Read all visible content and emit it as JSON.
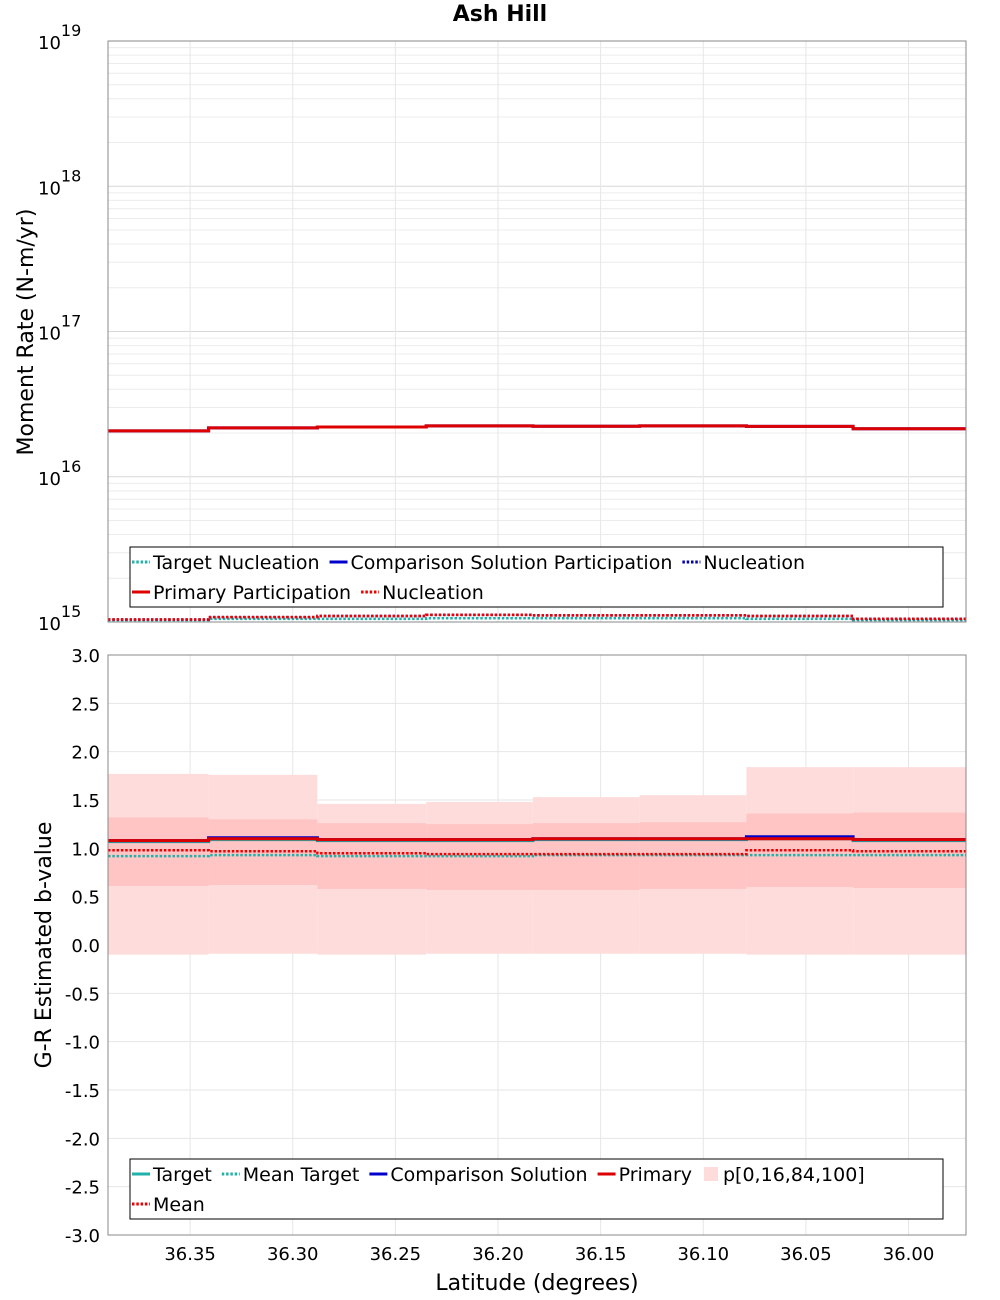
{
  "title": "Ash Hill",
  "chart_data": [
    {
      "type": "line",
      "ylabel": "Moment Rate (N-m/yr)",
      "yscale": "log",
      "ylim_exp": [
        15,
        19
      ],
      "ytick_labels": [
        {
          "base": "10",
          "exp": "15"
        },
        {
          "base": "10",
          "exp": "16"
        },
        {
          "base": "10",
          "exp": "17"
        },
        {
          "base": "10",
          "exp": "18"
        },
        {
          "base": "10",
          "exp": "19"
        }
      ],
      "xlim": [
        36.39,
        35.972
      ],
      "bin_edges": [
        36.39,
        36.341,
        36.288,
        36.235,
        36.183,
        36.131,
        36.079,
        36.027,
        35.972
      ],
      "series": [
        {
          "name": "Target Nucleation",
          "color": "#20b2aa",
          "dash": "dotted",
          "values": [
            1030000000000000.0,
            1050000000000000.0,
            1050000000000000.0,
            1060000000000000.0,
            1060000000000000.0,
            1060000000000000.0,
            1050000000000000.0,
            1030000000000000.0
          ]
        },
        {
          "name": "Comparison Solution Participation",
          "color": "#0000cc",
          "dash": "solid",
          "values": [
            2.07e+16,
            2.17e+16,
            2.2e+16,
            2.24e+16,
            2.23e+16,
            2.24e+16,
            2.22e+16,
            2.14e+16
          ]
        },
        {
          "name": "Nucleation",
          "color": "#0000aa",
          "dash": "dotted",
          "values": [
            1040000000000000.0,
            1080000000000000.0,
            1100000000000000.0,
            1120000000000000.0,
            1110000000000000.0,
            1110000000000000.0,
            1100000000000000.0,
            1050000000000000.0
          ]
        },
        {
          "name": "Primary Participation",
          "color": "#dd0000",
          "dash": "solid",
          "values": [
            2.07e+16,
            2.17e+16,
            2.2e+16,
            2.24e+16,
            2.23e+16,
            2.24e+16,
            2.22e+16,
            2.14e+16
          ]
        },
        {
          "name": "Nucleation",
          "color": "#ee0000",
          "dash": "dotted",
          "values": [
            1040000000000000.0,
            1080000000000000.0,
            1100000000000000.0,
            1120000000000000.0,
            1110000000000000.0,
            1110000000000000.0,
            1100000000000000.0,
            1050000000000000.0
          ]
        }
      ],
      "legend": {
        "position": "bottom",
        "rows": [
          [
            "Target Nucleation",
            "Comparison Solution Participation",
            "Nucleation"
          ],
          [
            "Primary Participation",
            "Nucleation"
          ]
        ]
      }
    },
    {
      "type": "line",
      "xlabel": "Latitude (degrees)",
      "ylabel": "G-R Estimated b-value",
      "ylim": [
        -3.0,
        3.0
      ],
      "yticks": [
        -3.0,
        -2.5,
        -2.0,
        -1.5,
        -1.0,
        -0.5,
        0.0,
        0.5,
        1.0,
        1.5,
        2.0,
        2.5,
        3.0
      ],
      "ytick_labels": [
        "-3.0",
        "-2.5",
        "-2.0",
        "-1.5",
        "-1.0",
        "-0.5",
        "0.0",
        "0.5",
        "1.0",
        "1.5",
        "2.0",
        "2.5",
        "3.0"
      ],
      "xlim": [
        36.39,
        35.972
      ],
      "xticks": [
        36.35,
        36.3,
        36.25,
        36.2,
        36.15,
        36.1,
        36.05,
        36.0
      ],
      "xtick_labels": [
        "36.35",
        "36.30",
        "36.25",
        "36.20",
        "36.15",
        "36.10",
        "36.05",
        "36.00"
      ],
      "bin_edges": [
        36.39,
        36.341,
        36.288,
        36.235,
        36.183,
        36.131,
        36.079,
        36.027,
        35.972
      ],
      "bands": {
        "name": "p[0,16,84,100]",
        "p0": [
          -0.1,
          -0.09,
          -0.1,
          -0.09,
          -0.09,
          -0.09,
          -0.1,
          -0.1
        ],
        "p100": [
          1.77,
          1.76,
          1.46,
          1.48,
          1.53,
          1.55,
          1.84,
          1.84
        ],
        "p16": [
          0.61,
          0.62,
          0.58,
          0.57,
          0.57,
          0.58,
          0.6,
          0.59
        ],
        "p84": [
          1.32,
          1.3,
          1.26,
          1.25,
          1.26,
          1.27,
          1.36,
          1.37
        ]
      },
      "series": [
        {
          "name": "Target",
          "color": "#20b2aa",
          "dash": "solid",
          "values": [
            1.07,
            1.09,
            1.08,
            1.08,
            1.09,
            1.09,
            1.1,
            1.08
          ]
        },
        {
          "name": "Mean Target",
          "color": "#20b2aa",
          "dash": "dotted",
          "values": [
            0.92,
            0.93,
            0.92,
            0.92,
            0.93,
            0.93,
            0.93,
            0.93
          ]
        },
        {
          "name": "Comparison Solution",
          "color": "#0000cc",
          "dash": "solid",
          "values": [
            1.08,
            1.11,
            1.09,
            1.09,
            1.1,
            1.1,
            1.12,
            1.09
          ]
        },
        {
          "name": "Primary",
          "color": "#dd0000",
          "dash": "solid",
          "values": [
            1.08,
            1.1,
            1.09,
            1.09,
            1.1,
            1.1,
            1.1,
            1.09
          ]
        },
        {
          "name": "Mean",
          "color": "#ee0000",
          "dash": "dotted",
          "values": [
            0.98,
            0.97,
            0.95,
            0.94,
            0.94,
            0.94,
            0.98,
            0.97
          ]
        }
      ],
      "legend": {
        "position": "bottom",
        "rows": [
          [
            "Target",
            "Mean Target",
            "Comparison Solution",
            "Primary",
            "p[0,16,84,100]"
          ],
          [
            "Mean"
          ]
        ]
      }
    }
  ]
}
